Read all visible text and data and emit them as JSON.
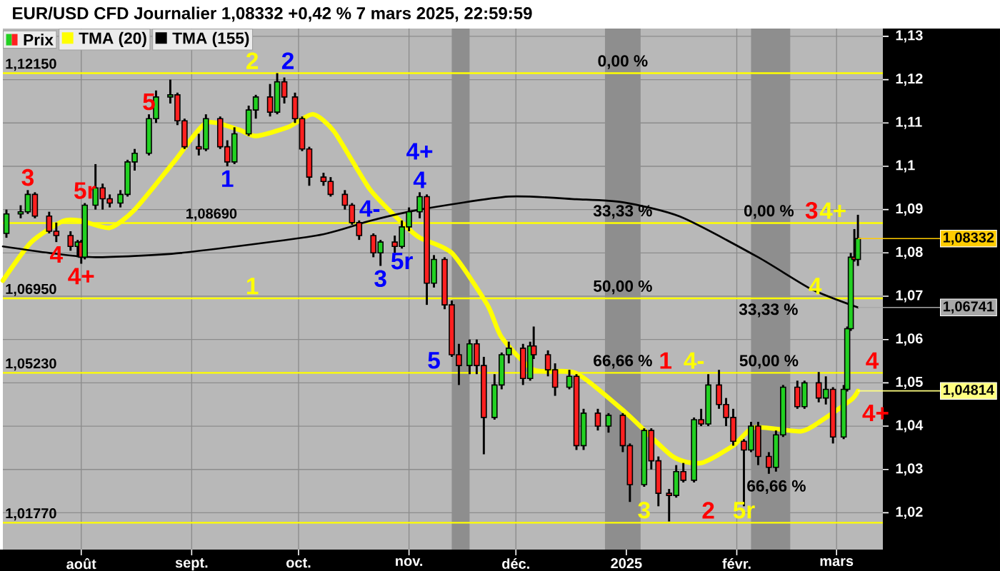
{
  "chart_data": {
    "type": "candlestick",
    "title": "EUR/USD CFD Journalier 1,08332 +0,42 % 7 mars 2025, 22:59:59",
    "series": [
      {
        "name": "Prix",
        "x": [
          "2024-07-11",
          "2024-07-15",
          "2024-07-17",
          "2024-07-19",
          "2024-07-23",
          "2024-07-25",
          "2024-07-29",
          "2024-07-31",
          "2024-08-01",
          "2024-08-02",
          "2024-08-05",
          "2024-08-07",
          "2024-08-09",
          "2024-08-12",
          "2024-08-14",
          "2024-08-16",
          "2024-08-20",
          "2024-08-22",
          "2024-08-26",
          "2024-08-28",
          "2024-08-30",
          "2024-09-03",
          "2024-09-05",
          "2024-09-09",
          "2024-09-11",
          "2024-09-13",
          "2024-09-17",
          "2024-09-19",
          "2024-09-23",
          "2024-09-25",
          "2024-09-27",
          "2024-09-30",
          "2024-10-02",
          "2024-10-04",
          "2024-10-08",
          "2024-10-10",
          "2024-10-14",
          "2024-10-16",
          "2024-10-18",
          "2024-10-22",
          "2024-10-24",
          "2024-10-28",
          "2024-10-30",
          "2024-11-01",
          "2024-11-04",
          "2024-11-06",
          "2024-11-08",
          "2024-11-11",
          "2024-11-13",
          "2024-11-15",
          "2024-11-18",
          "2024-11-20",
          "2024-11-22",
          "2024-11-25",
          "2024-11-27",
          "2024-11-29",
          "2024-12-03",
          "2024-12-05",
          "2024-12-06",
          "2024-12-10",
          "2024-12-12",
          "2024-12-16",
          "2024-12-18",
          "2024-12-20",
          "2024-12-24",
          "2024-12-27",
          "2024-12-31",
          "2025-01-02",
          "2025-01-06",
          "2025-01-08",
          "2025-01-10",
          "2025-01-13",
          "2025-01-15",
          "2025-01-17",
          "2025-01-20",
          "2025-01-22",
          "2025-01-24",
          "2025-01-27",
          "2025-01-29",
          "2025-01-31",
          "2025-02-03",
          "2025-02-05",
          "2025-02-07",
          "2025-02-10",
          "2025-02-12",
          "2025-02-14",
          "2025-02-18",
          "2025-02-20",
          "2025-02-24",
          "2025-02-26",
          "2025-02-28",
          "2025-03-03",
          "2025-03-04",
          "2025-03-05",
          "2025-03-06",
          "2025-03-07"
        ],
        "ohlc": [
          [
            1.0845,
            1.09,
            1.0835,
            1.089
          ],
          [
            1.089,
            1.091,
            1.088,
            1.0895
          ],
          [
            1.0895,
            1.0945,
            1.089,
            1.0935
          ],
          [
            1.0935,
            1.094,
            1.088,
            1.0885
          ],
          [
            1.0885,
            1.0895,
            1.0845,
            1.085
          ],
          [
            1.085,
            1.087,
            1.0825,
            1.084
          ],
          [
            1.084,
            1.085,
            1.0805,
            1.0815
          ],
          [
            1.0815,
            1.083,
            1.079,
            1.0825
          ],
          [
            1.0825,
            1.083,
            1.0775,
            1.079
          ],
          [
            1.079,
            1.0915,
            1.0785,
            1.091
          ],
          [
            1.091,
            1.1005,
            1.09,
            1.095
          ],
          [
            1.095,
            1.096,
            1.09,
            1.0925
          ],
          [
            1.0925,
            1.0935,
            1.0905,
            1.0915
          ],
          [
            1.0915,
            1.0945,
            1.0905,
            1.0935
          ],
          [
            1.0935,
            1.1015,
            1.093,
            1.101
          ],
          [
            1.101,
            1.104,
            1.099,
            1.103
          ],
          [
            1.103,
            1.112,
            1.1025,
            1.111
          ],
          [
            1.111,
            1.1175,
            1.11,
            1.116
          ],
          [
            1.116,
            1.12,
            1.1145,
            1.1165
          ],
          [
            1.1165,
            1.117,
            1.1095,
            1.1105
          ],
          [
            1.1105,
            1.111,
            1.104,
            1.1045
          ],
          [
            1.1045,
            1.1075,
            1.1025,
            1.104
          ],
          [
            1.104,
            1.112,
            1.1035,
            1.111
          ],
          [
            1.111,
            1.1115,
            1.104,
            1.1045
          ],
          [
            1.1045,
            1.106,
            1.1,
            1.101
          ],
          [
            1.101,
            1.109,
            1.1005,
            1.1075
          ],
          [
            1.1075,
            1.114,
            1.107,
            1.113
          ],
          [
            1.113,
            1.1165,
            1.111,
            1.116
          ],
          [
            1.116,
            1.119,
            1.1115,
            1.1125
          ],
          [
            1.1125,
            1.1215,
            1.112,
            1.1195
          ],
          [
            1.1195,
            1.1205,
            1.1145,
            1.116
          ],
          [
            1.116,
            1.117,
            1.11,
            1.111
          ],
          [
            1.111,
            1.1115,
            1.1035,
            1.104
          ],
          [
            1.104,
            1.1045,
            1.0955,
            1.0975
          ],
          [
            1.0975,
            1.0985,
            1.0955,
            1.0965
          ],
          [
            1.0965,
            1.0975,
            1.093,
            1.0935
          ],
          [
            1.0935,
            1.0945,
            1.09,
            1.091
          ],
          [
            1.091,
            1.0915,
            1.0865,
            1.087
          ],
          [
            1.087,
            1.0875,
            1.083,
            1.084
          ],
          [
            1.084,
            1.0845,
            1.079,
            1.08
          ],
          [
            1.08,
            1.083,
            1.077,
            1.0825
          ],
          [
            1.0825,
            1.084,
            1.08,
            1.0815
          ],
          [
            1.0815,
            1.0875,
            1.081,
            1.086
          ],
          [
            1.086,
            1.0905,
            1.085,
            1.0895
          ],
          [
            1.0895,
            1.094,
            1.088,
            1.093
          ],
          [
            1.093,
            1.0935,
            1.068,
            1.073
          ],
          [
            1.073,
            1.0795,
            1.072,
            1.0785
          ],
          [
            1.0785,
            1.079,
            1.067,
            1.068
          ],
          [
            1.068,
            1.069,
            1.056,
            1.0565
          ],
          [
            1.0565,
            1.059,
            1.0495,
            1.054
          ],
          [
            1.054,
            1.06,
            1.052,
            1.059
          ],
          [
            1.059,
            1.06,
            1.052,
            1.054
          ],
          [
            1.054,
            1.056,
            1.0335,
            1.042
          ],
          [
            1.042,
            1.052,
            1.0415,
            1.0495
          ],
          [
            1.0495,
            1.057,
            1.0485,
            1.0565
          ],
          [
            1.0565,
            1.0595,
            1.0545,
            1.058
          ],
          [
            1.058,
            1.059,
            1.0495,
            1.051
          ],
          [
            1.051,
            1.0595,
            1.0505,
            1.0585
          ],
          [
            1.0585,
            1.063,
            1.0555,
            1.0565
          ],
          [
            1.0565,
            1.0575,
            1.0515,
            1.053
          ],
          [
            1.053,
            1.0545,
            1.047,
            1.049
          ],
          [
            1.049,
            1.053,
            1.0485,
            1.0515
          ],
          [
            1.0515,
            1.052,
            1.0345,
            1.0355
          ],
          [
            1.0355,
            1.044,
            1.0345,
            1.043
          ],
          [
            1.043,
            1.044,
            1.039,
            1.04
          ],
          [
            1.04,
            1.043,
            1.0385,
            1.0425
          ],
          [
            1.0425,
            1.043,
            1.034,
            1.0355
          ],
          [
            1.0355,
            1.036,
            1.0225,
            1.0265
          ],
          [
            1.0265,
            1.0395,
            1.026,
            1.039
          ],
          [
            1.039,
            1.0395,
            1.03,
            1.032
          ],
          [
            1.032,
            1.033,
            1.0215,
            1.0245
          ],
          [
            1.0245,
            1.0255,
            1.018,
            1.024
          ],
          [
            1.024,
            1.031,
            1.0235,
            1.0295
          ],
          [
            1.0295,
            1.0315,
            1.027,
            1.0275
          ],
          [
            1.0275,
            1.042,
            1.027,
            1.0415
          ],
          [
            1.0415,
            1.044,
            1.04,
            1.0405
          ],
          [
            1.0405,
            1.052,
            1.04,
            1.0495
          ],
          [
            1.0495,
            1.053,
            1.044,
            1.045
          ],
          [
            1.045,
            1.0465,
            1.04,
            1.042
          ],
          [
            1.042,
            1.044,
            1.0355,
            1.0365
          ],
          [
            1.0365,
            1.037,
            1.0215,
            1.0345
          ],
          [
            1.0345,
            1.041,
            1.034,
            1.04
          ],
          [
            1.04,
            1.041,
            1.031,
            1.033
          ],
          [
            1.033,
            1.034,
            1.029,
            1.0305
          ],
          [
            1.0305,
            1.039,
            1.0295,
            1.038
          ],
          [
            1.038,
            1.0495,
            1.0375,
            1.049
          ],
          [
            1.049,
            1.0505,
            1.044,
            1.0445
          ],
          [
            1.0445,
            1.0505,
            1.044,
            1.05
          ],
          [
            1.05,
            1.0525,
            1.0455,
            1.0465
          ],
          [
            1.0465,
            1.0515,
            1.045,
            1.0485
          ],
          [
            1.0485,
            1.049,
            1.036,
            1.0375
          ],
          [
            1.0375,
            1.0495,
            1.037,
            1.0485
          ],
          [
            1.0485,
            1.063,
            1.048,
            1.0625
          ],
          [
            1.0625,
            1.08,
            1.062,
            1.079
          ],
          [
            1.079,
            1.0855,
            1.078,
            1.0785
          ],
          [
            1.0785,
            1.0888,
            1.077,
            1.0833
          ]
        ]
      },
      {
        "name": "TMA (20)",
        "type": "line",
        "color": "#ffff00",
        "x": [
          "2024-07-10",
          "2024-07-18",
          "2024-07-27",
          "2024-08-01",
          "2024-08-09",
          "2024-08-16",
          "2024-08-27",
          "2024-09-05",
          "2024-09-14",
          "2024-09-19",
          "2024-09-28",
          "2024-10-05",
          "2024-10-11",
          "2024-10-21",
          "2024-10-30",
          "2024-11-04",
          "2024-11-13",
          "2024-11-23",
          "2024-11-27",
          "2024-12-06",
          "2024-12-18",
          "2025-01-01",
          "2025-01-14",
          "2025-01-22",
          "2025-01-31",
          "2025-02-06",
          "2025-02-19",
          "2025-02-25",
          "2025-03-05",
          "2025-03-07"
        ],
        "values": [
          1.0736,
          1.0825,
          1.0874,
          1.0874,
          1.0858,
          1.09,
          1.101,
          1.11,
          1.1085,
          1.107,
          1.109,
          1.112,
          1.108,
          1.0947,
          1.087,
          1.0835,
          1.08,
          1.068,
          1.0605,
          1.053,
          1.0522,
          1.043,
          1.033,
          1.0315,
          1.0355,
          1.0397,
          1.0388,
          1.0414,
          1.046,
          1.0481
        ]
      },
      {
        "name": "TMA (155)",
        "type": "line",
        "color": "#000000",
        "x": [
          "2024-07-10",
          "2024-07-23",
          "2024-08-05",
          "2024-08-29",
          "2024-10-06",
          "2024-10-21",
          "2024-11-04",
          "2024-11-29",
          "2024-12-18",
          "2024-12-31",
          "2025-01-16",
          "2025-02-07",
          "2025-02-22",
          "2025-03-07"
        ],
        "values": [
          1.0815,
          1.08,
          1.079,
          1.08,
          1.084,
          1.0874,
          1.09,
          1.093,
          1.0924,
          1.0917,
          1.0884,
          1.079,
          1.0716,
          1.0674
        ]
      }
    ],
    "xlim": [
      "2024-07-10",
      "2025-03-14"
    ],
    "xticks": [
      {
        "value": "2024-08-01",
        "label": "août"
      },
      {
        "value": "2024-09-01",
        "label": "sept."
      },
      {
        "value": "2024-10-01",
        "label": "oct."
      },
      {
        "value": "2024-11-01",
        "label": "nov."
      },
      {
        "value": "2024-12-01",
        "label": "déc."
      },
      {
        "value": "2025-01-01",
        "label": "2025"
      },
      {
        "value": "2025-02-01",
        "label": "févr."
      },
      {
        "value": "2025-03-01",
        "label": "mars"
      }
    ],
    "ylim": [
      1.0115,
      1.1318
    ],
    "yticks": [
      {
        "value": 1.02,
        "label": "1,02"
      },
      {
        "value": 1.03,
        "label": "1,03"
      },
      {
        "value": 1.04,
        "label": "1,04"
      },
      {
        "value": 1.05,
        "label": "1,05"
      },
      {
        "value": 1.06,
        "label": "1,06"
      },
      {
        "value": 1.07,
        "label": "1,07"
      },
      {
        "value": 1.08,
        "label": "1,08"
      },
      {
        "value": 1.09,
        "label": "1,09"
      },
      {
        "value": 1.1,
        "label": "1,1"
      },
      {
        "value": 1.11,
        "label": "1,11"
      },
      {
        "value": 1.12,
        "label": "1,12"
      },
      {
        "value": 1.13,
        "label": "1,13"
      }
    ],
    "grid": true,
    "legend": "top left",
    "ref_lines": [
      {
        "axis": "y",
        "value": 1.1215,
        "label": "1,12150",
        "color": "#ffff00"
      },
      {
        "axis": "y",
        "value": 1.0869,
        "label": "1,08690",
        "color": "#ffff00"
      },
      {
        "axis": "y",
        "value": 1.0695,
        "label": "1,06950",
        "color": "#ffff00"
      },
      {
        "axis": "y",
        "value": 1.0523,
        "label": "1,05230",
        "color": "#ffff00"
      },
      {
        "axis": "y",
        "value": 1.0177,
        "label": "1,01770",
        "color": "#ffff00"
      }
    ],
    "bands": [
      {
        "axis": "x",
        "from": "2024-11-13",
        "to": "2024-11-18",
        "color": "#8e8e8e"
      },
      {
        "axis": "x",
        "from": "2024-12-26",
        "to": "2025-01-05",
        "color": "#8e8e8e"
      },
      {
        "axis": "x",
        "from": "2025-02-05",
        "to": "2025-02-16",
        "color": "#8e8e8e"
      }
    ],
    "annotations": [
      {
        "text": "3",
        "x": "2024-07-17",
        "y": 1.0945
      },
      {
        "text": "5r",
        "x": "2024-08-02",
        "y": 1.0915
      },
      {
        "text": "5",
        "x": "2024-08-20",
        "y": 1.112
      },
      {
        "text": "4",
        "x": "2024-07-25",
        "y": 1.0825
      },
      {
        "text": "4+",
        "x": "2024-08-01",
        "y": 1.0775
      },
      {
        "text": "2",
        "x": "2024-09-18",
        "y": 1.1215
      },
      {
        "text": "2",
        "x": "2024-09-28",
        "y": 1.1215
      },
      {
        "text": "1",
        "x": "2024-09-11",
        "y": 1.1
      },
      {
        "text": "1",
        "x": "2024-09-18",
        "y": 1.0695
      },
      {
        "text": "4",
        "x": "2024-11-04",
        "y": 1.094
      },
      {
        "text": "4+",
        "x": "2024-11-04",
        "y": 1.094
      },
      {
        "text": "4-",
        "x": "2024-10-21",
        "y": 1.0874
      },
      {
        "text": "3",
        "x": "2024-10-24",
        "y": 1.077
      },
      {
        "text": "5r",
        "x": "2024-10-30",
        "y": 1.081
      },
      {
        "text": "5",
        "x": "2024-11-08",
        "y": 1.0523
      },
      {
        "text": "1",
        "x": "2025-01-12",
        "y": 1.0523
      },
      {
        "text": "4-",
        "x": "2025-01-20",
        "y": 1.0523
      },
      {
        "text": "3",
        "x": "2025-01-06",
        "y": 1.0177
      },
      {
        "text": "2",
        "x": "2025-01-24",
        "y": 1.0177
      },
      {
        "text": "5r",
        "x": "2025-02-03",
        "y": 1.0177
      },
      {
        "text": "4",
        "x": "2025-02-23",
        "y": 1.0695
      },
      {
        "text": "3",
        "x": "2025-02-22",
        "y": 1.0869
      },
      {
        "text": "4+",
        "x": "2025-02-28",
        "y": 1.0869
      },
      {
        "text": "4",
        "x": "2025-03-11",
        "y": 1.0523
      },
      {
        "text": "4+",
        "x": "2025-03-07",
        "y": 1.0481
      },
      {
        "text": "0,00 %",
        "x": "2024-12-31",
        "y": 1.1215
      },
      {
        "text": "33,33 %",
        "x": "2024-12-31",
        "y": 1.0869
      },
      {
        "text": "50,00 %",
        "x": "2024-12-31",
        "y": 1.0695
      },
      {
        "text": "66,66 %",
        "x": "2024-12-31",
        "y": 1.0523
      },
      {
        "text": "0,00 %",
        "x": "2025-02-10",
        "y": 1.0869
      },
      "33,33 %",
      {
        "text": "50,00 %",
        "x": "2025-02-10",
        "y": 1.0523
      },
      "66,66 %",
      {
        "text": "1,08332",
        "x": "2025-03-07",
        "y": 1.08332
      },
      {
        "text": "1,06741",
        "x": "2025-03-07",
        "y": 1.06741
      },
      {
        "text": "1,04814",
        "x": "2025-03-07",
        "y": 1.04814
      }
    ]
  }
}
